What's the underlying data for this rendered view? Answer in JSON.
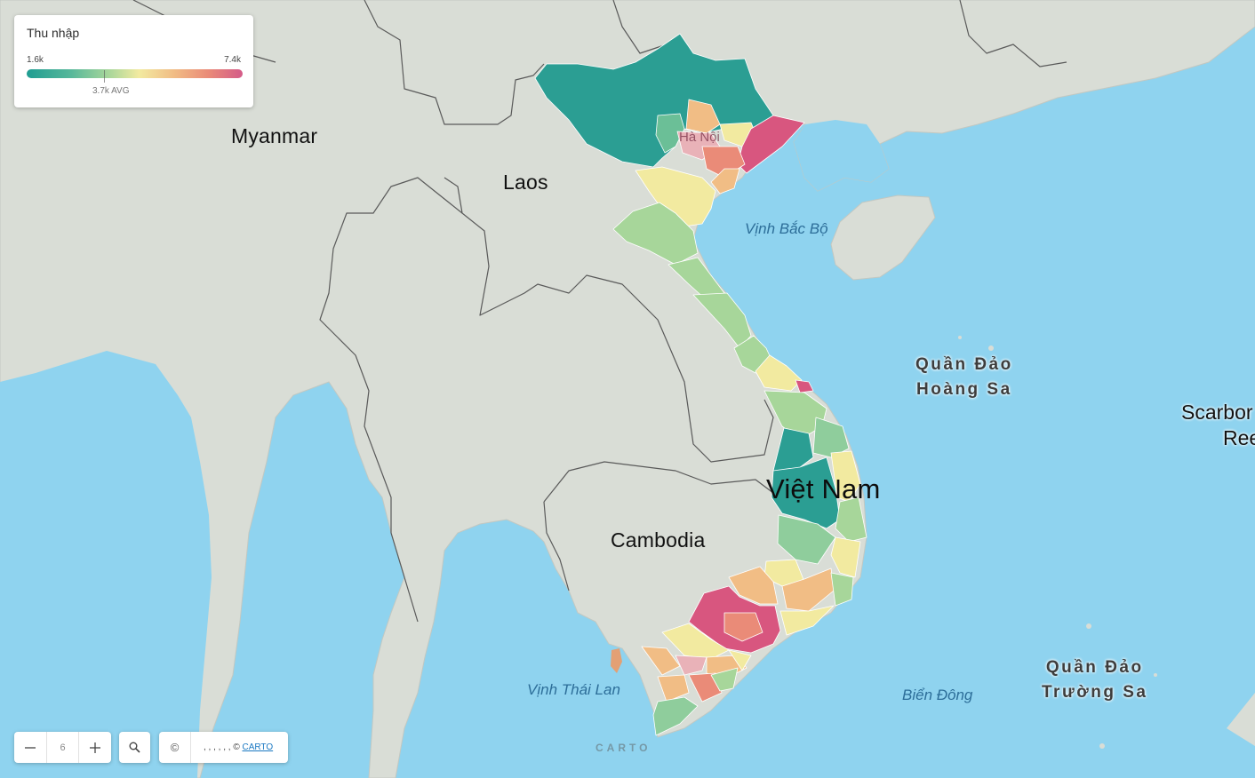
{
  "legend": {
    "title": "Thu nhập",
    "min_label": "1.6k",
    "max_label": "7.4k",
    "avg_label": "3.7k AVG",
    "colors": [
      "#1f9d92",
      "#55b79a",
      "#a7d69a",
      "#f2eaa0",
      "#f1bd85",
      "#ea8b78",
      "#d45b89"
    ]
  },
  "map_labels": {
    "myanmar": "Myanmar",
    "laos": "Laos",
    "cambodia": "Cambodia",
    "vietnam": "Việt Nam",
    "ha_noi": "Hà Nội",
    "gulf_tonkin": "Vịnh Bắc Bộ",
    "gulf_thailand": "Vịnh Thái Lan",
    "east_sea": "Biển Đông",
    "paracel_line1": "Quần Đảo",
    "paracel_line2": "Hoàng Sa",
    "spratly_line1": "Quần Đảo",
    "spratly_line2": "Trường Sa",
    "scarborough_line1": "Scarbor",
    "scarborough_line2": "Ree"
  },
  "controls": {
    "zoom_out_icon": "minus-icon",
    "zoom_level": "6",
    "zoom_in_icon": "plus-icon",
    "search_icon": "search-icon",
    "attribution_symbol": "©",
    "attribution_text": ", , , , , , ©",
    "attribution_link": "CARTO",
    "watermark": "CARTO"
  }
}
